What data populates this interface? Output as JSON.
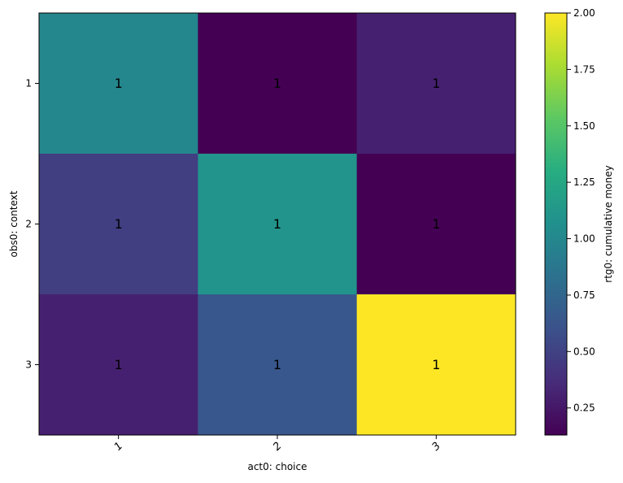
{
  "chart_data": {
    "type": "heatmap",
    "title": "",
    "xlabel": "act0: choice",
    "ylabel": "obs0: context",
    "x_categories": [
      "1",
      "2",
      "3"
    ],
    "y_categories": [
      "1",
      "2",
      "3"
    ],
    "values": [
      [
        1.0,
        0.13,
        0.3
      ],
      [
        0.48,
        1.1,
        0.13
      ],
      [
        0.3,
        0.64,
        2.0
      ]
    ],
    "cell_labels": [
      [
        "1",
        "1",
        "1"
      ],
      [
        "1",
        "1",
        "1"
      ],
      [
        "1",
        "1",
        "1"
      ]
    ],
    "x_tick_rotation": "-45",
    "colormap": "viridis",
    "colorbar": {
      "label": "rtg0: cumulative money",
      "range": [
        0.13,
        2.0
      ],
      "ticks": [
        "0.25",
        "0.50",
        "0.75",
        "1.00",
        "1.25",
        "1.50",
        "1.75",
        "2.00"
      ],
      "tick_values": [
        0.25,
        0.5,
        0.75,
        1.0,
        1.25,
        1.5,
        1.75,
        2.0
      ]
    },
    "grid": false
  }
}
